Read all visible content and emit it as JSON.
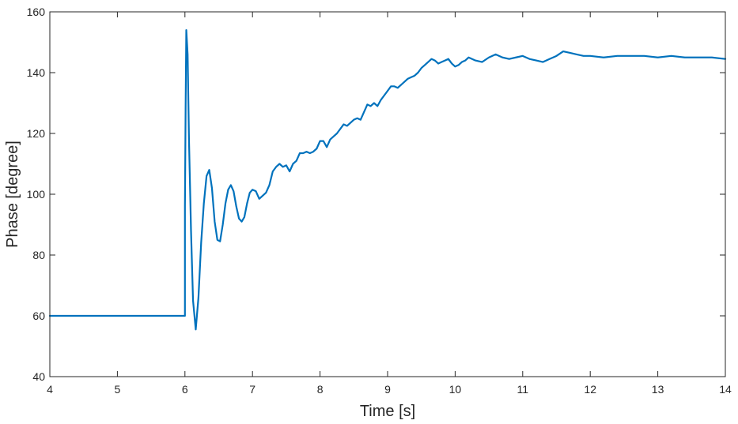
{
  "chart_data": {
    "type": "line",
    "title": "",
    "xlabel": "Time [s]",
    "ylabel": "Phase [degree]",
    "xlim": [
      4,
      14
    ],
    "ylim": [
      40,
      160
    ],
    "xticks": [
      4,
      5,
      6,
      7,
      8,
      9,
      10,
      11,
      12,
      13,
      14
    ],
    "yticks": [
      40,
      60,
      80,
      100,
      120,
      140,
      160
    ],
    "grid": false,
    "legend": "none",
    "series": [
      {
        "color": "#0072BD",
        "x": [
          4.0,
          5.0,
          6.0,
          6.0,
          6.01,
          6.02,
          6.04,
          6.06,
          6.09,
          6.12,
          6.16,
          6.2,
          6.24,
          6.28,
          6.32,
          6.36,
          6.4,
          6.44,
          6.48,
          6.52,
          6.56,
          6.6,
          6.64,
          6.68,
          6.72,
          6.76,
          6.8,
          6.84,
          6.88,
          6.92,
          6.96,
          7.0,
          7.05,
          7.1,
          7.15,
          7.2,
          7.25,
          7.3,
          7.35,
          7.4,
          7.45,
          7.5,
          7.55,
          7.6,
          7.65,
          7.7,
          7.75,
          7.8,
          7.85,
          7.9,
          7.95,
          8.0,
          8.05,
          8.1,
          8.15,
          8.2,
          8.25,
          8.3,
          8.35,
          8.4,
          8.45,
          8.5,
          8.55,
          8.6,
          8.65,
          8.7,
          8.75,
          8.8,
          8.85,
          8.9,
          8.95,
          9.0,
          9.05,
          9.1,
          9.15,
          9.2,
          9.25,
          9.3,
          9.35,
          9.4,
          9.45,
          9.5,
          9.55,
          9.6,
          9.65,
          9.7,
          9.75,
          9.8,
          9.85,
          9.9,
          9.95,
          10.0,
          10.05,
          10.1,
          10.15,
          10.2,
          10.3,
          10.4,
          10.5,
          10.6,
          10.7,
          10.8,
          10.9,
          11.0,
          11.1,
          11.2,
          11.3,
          11.4,
          11.5,
          11.6,
          11.7,
          11.8,
          11.9,
          12.0,
          12.2,
          12.4,
          12.6,
          12.8,
          13.0,
          13.2,
          13.4,
          13.6,
          13.8,
          14.0
        ],
        "y": [
          60,
          60,
          60,
          96,
          128,
          154,
          146,
          118,
          88,
          65,
          55.5,
          66,
          84,
          97,
          106,
          108,
          102,
          91,
          85,
          84.5,
          90,
          97,
          101.5,
          103,
          101,
          96,
          92,
          91,
          92.5,
          97,
          100.5,
          101.5,
          101,
          98.5,
          99.5,
          100.5,
          103,
          107.5,
          109,
          110,
          109,
          109.5,
          107.5,
          110,
          111,
          113.5,
          113.5,
          114,
          113.5,
          114,
          115,
          117.5,
          117.5,
          115.5,
          118,
          119,
          120,
          121.5,
          123,
          122.5,
          123.5,
          124.5,
          125,
          124.5,
          127,
          129.5,
          129,
          130,
          129,
          131,
          132.5,
          134,
          135.5,
          135.5,
          135,
          136,
          137,
          138,
          138.5,
          139,
          140,
          141.5,
          142.5,
          143.5,
          144.5,
          144,
          143,
          143.5,
          144,
          144.5,
          143,
          142,
          142.5,
          143.5,
          144,
          145,
          144,
          143.5,
          145,
          146,
          145,
          144.5,
          145,
          145.5,
          144.5,
          144,
          143.5,
          144.5,
          145.5,
          147,
          146.5,
          146,
          145.5,
          145.5,
          145,
          145.5,
          145.5,
          145.5,
          145,
          145.5,
          145,
          145,
          145,
          144.5
        ]
      }
    ]
  }
}
